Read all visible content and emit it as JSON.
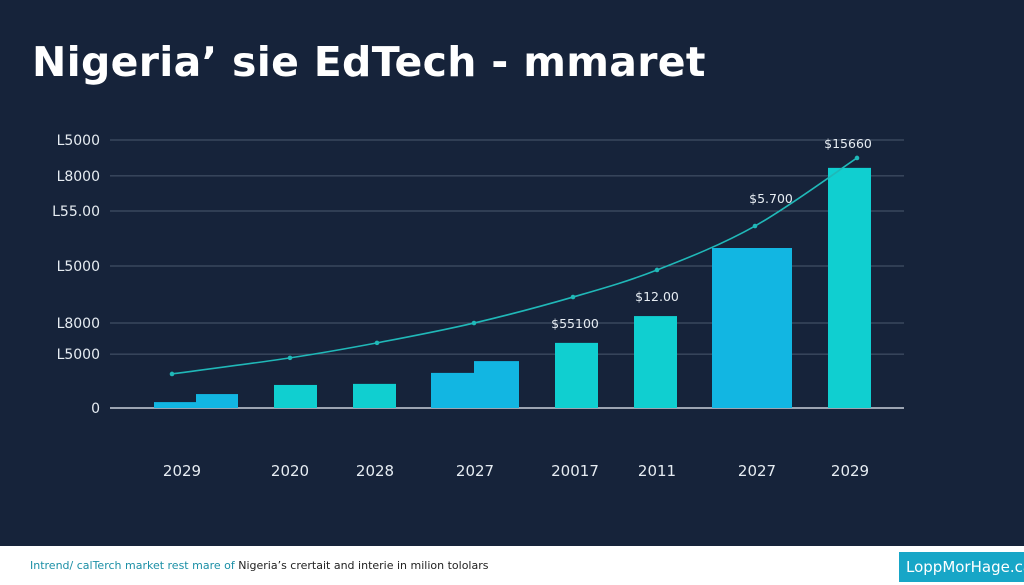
{
  "title": "Nigeria’ sie EdTech - mmaret",
  "chart_data": {
    "type": "bar",
    "title": "Nigeria’ sie EdTech - mmaret",
    "xlabel": "",
    "ylabel": "",
    "ylim": [
      0,
      100
    ],
    "grid": true,
    "y_ticks": [
      {
        "label": "0",
        "value": 0
      },
      {
        "label": "L5000",
        "value": 20.1
      },
      {
        "label": "L8000",
        "value": 31.7
      },
      {
        "label": "L5000",
        "value": 53
      },
      {
        "label": "L55.00",
        "value": 73.5
      },
      {
        "label": "L8000",
        "value": 86.6
      },
      {
        "label": "L5000",
        "value": 100
      }
    ],
    "categories": [
      "2029",
      "2020",
      "2028",
      "2027",
      "20017",
      "2011",
      "2027",
      "2029"
    ],
    "bars": [
      {
        "segments": [
          2.2,
          5.2
        ]
      },
      {
        "segments": [
          8.6
        ]
      },
      {
        "segments": [
          9.0
        ]
      },
      {
        "segments": [
          13.1,
          17.5
        ]
      },
      {
        "segments": [
          24.3
        ]
      },
      {
        "segments": [
          34.3
        ]
      },
      {
        "segments": [
          59.7
        ]
      },
      {
        "segments": [
          89.6
        ]
      }
    ],
    "line": [
      12.7,
      18.7,
      24.3,
      31.7,
      41.4,
      51.5,
      67.9,
      93.3
    ],
    "data_labels": [
      "",
      "",
      "",
      "",
      "$55100",
      "$12.00",
      "$5.700",
      "$15660"
    ],
    "colors": {
      "background": "#16233a",
      "bar_cyan": "#10cfd0",
      "bar_blue": "#12b6e2",
      "line": "#20b8b8",
      "grid": "#4a586e",
      "text": "#e6ecf2"
    }
  },
  "footer": {
    "caption_highlight": "Intrend/ calTerch market rest mare of",
    "caption_rest": " Nigeria’s crertait and interie in milion tololars",
    "brand": "LoppMorHage.car"
  }
}
